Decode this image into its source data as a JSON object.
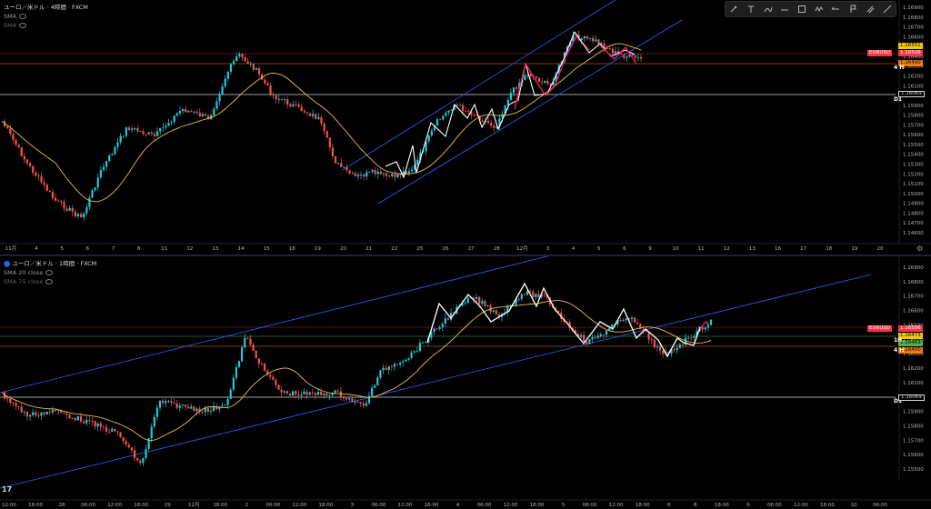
{
  "top_chart": {
    "symbol_title": "ユーロ／米ドル · 4時間 · FXCM",
    "indicators": [
      {
        "label": "SMA",
        "dim": false
      },
      {
        "label": "SMA",
        "dim": true
      }
    ],
    "price_ticks": [
      "1.16900",
      "1.16800",
      "1.16700",
      "1.16600",
      "1.16500",
      "1.16400",
      "1.16300",
      "1.16200",
      "1.16100",
      "1.16000",
      "1.15900",
      "1.15800",
      "1.15700",
      "1.15600",
      "1.15500",
      "1.15400",
      "1.15300",
      "1.15200",
      "1.15100",
      "1.15000",
      "1.14900",
      "1.14800",
      "1.14700",
      "1.14600"
    ],
    "price_tags": [
      {
        "text": "1.16551",
        "bg": "#f0c800",
        "fg": "#000"
      },
      {
        "text": "1.16506",
        "bg": "#f23645",
        "fg": "#fff",
        "prefix": "EURUSD"
      },
      {
        "text": "1.16400",
        "bg": "#f57c00",
        "fg": "#000"
      }
    ],
    "level_labels": [
      "4 H",
      "D1"
    ],
    "level_price": "1.16069",
    "x_labels": [
      "11月",
      "4",
      "5",
      "6",
      "7",
      "8",
      "11",
      "12",
      "13",
      "14",
      "15",
      "18",
      "19",
      "20",
      "21",
      "22",
      "25",
      "26",
      "27",
      "28",
      "12月",
      "3",
      "4",
      "5",
      "6",
      "9",
      "10",
      "11",
      "12",
      "13",
      "16",
      "17",
      "18",
      "19",
      "20"
    ]
  },
  "bottom_chart": {
    "symbol_title": "ユーロ／米ドル · 1時間 · FXCM",
    "indicators": [
      {
        "label": "SMA 20 close",
        "dim": false
      },
      {
        "label": "SMA 75 close",
        "dim": true
      }
    ],
    "price_ticks": [
      "1.16900",
      "1.16800",
      "1.16700",
      "1.16600",
      "1.16500",
      "1.16400",
      "1.16300",
      "1.16200",
      "1.16100",
      "1.16000",
      "1.15900",
      "1.15800",
      "1.15700",
      "1.15600",
      "1.15500"
    ],
    "price_tags": [
      {
        "text": "1.16506",
        "bg": "#f23645",
        "fg": "#fff",
        "prefix": "EURUSD"
      },
      {
        "text": "1.16473",
        "bg": "#f0c800",
        "fg": "#000"
      },
      {
        "text": "1.16463",
        "bg": "#4caf50",
        "fg": "#000"
      },
      {
        "text": "1.16400",
        "bg": "#f57c00",
        "fg": "#000"
      }
    ],
    "level_labels": [
      "1H",
      "4 H",
      "D1"
    ],
    "level_price": "1.16069",
    "x_labels": [
      "12:00",
      "18:00",
      "28",
      "06:00",
      "12:00",
      "18:00",
      "29",
      "12月",
      "18:00",
      "2",
      "06:00",
      "12:00",
      "18:00",
      "3",
      "06:00",
      "12:00",
      "18:00",
      "4",
      "06:00",
      "12:00",
      "18:00",
      "5",
      "06:00",
      "12:00",
      "18:00",
      "6",
      "8",
      "18:00",
      "9",
      "06:00",
      "12:00",
      "18:00",
      "10",
      "06:00"
    ]
  },
  "toolbar": {
    "tools": [
      "pen-icon",
      "text-icon",
      "brush-icon",
      "line-icon",
      "rectangle-icon",
      "zigzag-icon",
      "arrow-icon",
      "flag-icon",
      "eraser-icon",
      "ruler-icon"
    ]
  },
  "colors": {
    "bull": "#26c6da",
    "bear": "#ef5350",
    "sma": "#e6c14a",
    "channel": "#2962ff",
    "zigzag": "#ffffff",
    "pink": "#e91e63"
  }
}
